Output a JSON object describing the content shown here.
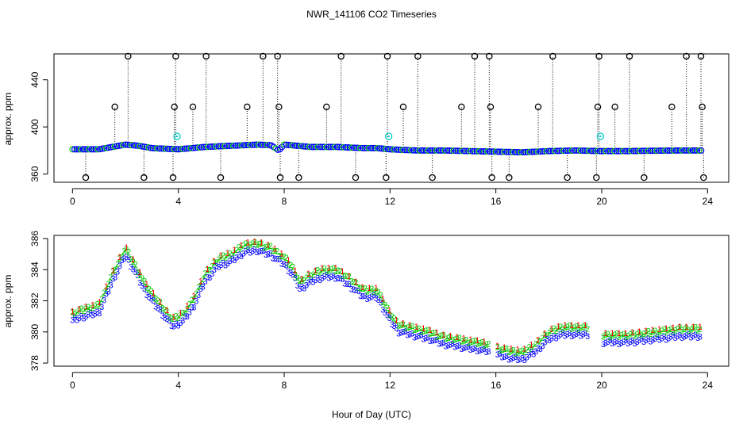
{
  "chart_data": [
    {
      "type": "scatter",
      "title": "NWR_141106  CO2 Timeseries",
      "ylabel": "approx. ppm",
      "xlim": [
        -0.7,
        24.8
      ],
      "ylim": [
        353,
        462
      ],
      "x_ticks": [
        0,
        4,
        8,
        12,
        16,
        20,
        24
      ],
      "y_ticks": [
        360,
        400,
        440
      ],
      "grid": false,
      "legend": "none",
      "colors": {
        "main": "#0000ff",
        "alt": "#00cc00",
        "outlier": "#000000",
        "flag": "#00cccc",
        "drop": "#000000"
      },
      "baseline": [
        [
          0,
          381
        ],
        [
          0.5,
          381
        ],
        [
          1,
          381
        ],
        [
          1.5,
          383
        ],
        [
          2,
          385
        ],
        [
          2.5,
          384
        ],
        [
          3,
          382
        ],
        [
          3.5,
          381.5
        ],
        [
          4,
          381
        ],
        [
          4.5,
          382
        ],
        [
          5,
          383
        ],
        [
          5.5,
          383.5
        ],
        [
          6,
          384
        ],
        [
          6.5,
          384.5
        ],
        [
          7,
          385
        ],
        [
          7.5,
          384.5
        ],
        [
          7.8,
          380
        ],
        [
          8,
          385
        ],
        [
          8.5,
          384
        ],
        [
          9,
          383
        ],
        [
          9.5,
          383
        ],
        [
          10,
          383
        ],
        [
          10.5,
          382.5
        ],
        [
          11,
          382
        ],
        [
          11.5,
          382
        ],
        [
          12,
          381
        ],
        [
          13,
          380
        ],
        [
          14,
          380
        ],
        [
          15,
          379.5
        ],
        [
          16,
          379
        ],
        [
          17,
          378.5
        ],
        [
          18,
          379.5
        ],
        [
          19,
          380
        ],
        [
          20,
          379.5
        ],
        [
          21,
          379.5
        ],
        [
          22,
          379.8
        ],
        [
          23,
          380
        ],
        [
          23.8,
          380
        ]
      ],
      "outliers": [
        {
          "x": 0.5,
          "y": 357
        },
        {
          "x": 1.6,
          "y": 417
        },
        {
          "x": 2.1,
          "y": 460
        },
        {
          "x": 2.7,
          "y": 357
        },
        {
          "x": 3.8,
          "y": 357
        },
        {
          "x": 3.85,
          "y": 417
        },
        {
          "x": 3.9,
          "y": 460
        },
        {
          "x": 4.55,
          "y": 417
        },
        {
          "x": 5.05,
          "y": 460
        },
        {
          "x": 5.6,
          "y": 357
        },
        {
          "x": 6.6,
          "y": 417
        },
        {
          "x": 7.2,
          "y": 460
        },
        {
          "x": 7.75,
          "y": 460
        },
        {
          "x": 7.8,
          "y": 417
        },
        {
          "x": 7.85,
          "y": 357
        },
        {
          "x": 8.55,
          "y": 357
        },
        {
          "x": 9.6,
          "y": 417
        },
        {
          "x": 10.15,
          "y": 460
        },
        {
          "x": 10.7,
          "y": 357
        },
        {
          "x": 11.85,
          "y": 357
        },
        {
          "x": 11.9,
          "y": 460
        },
        {
          "x": 12.5,
          "y": 417
        },
        {
          "x": 13.05,
          "y": 460
        },
        {
          "x": 13.6,
          "y": 357
        },
        {
          "x": 14.7,
          "y": 417
        },
        {
          "x": 15.2,
          "y": 460
        },
        {
          "x": 15.75,
          "y": 460
        },
        {
          "x": 15.8,
          "y": 417
        },
        {
          "x": 15.85,
          "y": 357
        },
        {
          "x": 16.5,
          "y": 357
        },
        {
          "x": 17.6,
          "y": 417
        },
        {
          "x": 18.15,
          "y": 460
        },
        {
          "x": 18.7,
          "y": 357
        },
        {
          "x": 19.8,
          "y": 357
        },
        {
          "x": 19.85,
          "y": 417
        },
        {
          "x": 19.9,
          "y": 460
        },
        {
          "x": 20.5,
          "y": 417
        },
        {
          "x": 21.05,
          "y": 460
        },
        {
          "x": 21.6,
          "y": 357
        },
        {
          "x": 22.65,
          "y": 417
        },
        {
          "x": 23.2,
          "y": 460
        },
        {
          "x": 23.75,
          "y": 460
        },
        {
          "x": 23.8,
          "y": 417
        },
        {
          "x": 23.85,
          "y": 357
        }
      ],
      "flags": [
        {
          "x": 3.95,
          "y": 392
        },
        {
          "x": 11.95,
          "y": 392
        },
        {
          "x": 19.95,
          "y": 392
        }
      ]
    },
    {
      "type": "scatter",
      "xlabel": "Hour of Day (UTC)",
      "ylabel": "approx. ppm",
      "xlim": [
        -0.7,
        24.8
      ],
      "ylim": [
        377.8,
        386.2
      ],
      "x_ticks": [
        0,
        4,
        8,
        12,
        16,
        20,
        24
      ],
      "y_ticks": [
        378,
        380,
        382,
        384,
        386
      ],
      "grid": false,
      "legend": "none",
      "marker_labels": [
        "1",
        "2",
        "3"
      ],
      "colors": {
        "1": "#ff0000",
        "2": "#00cc00",
        "3": "#0000ff",
        "line": "#00aa00"
      },
      "gaps": [
        [
          15.8,
          16.0
        ],
        [
          19.5,
          20.0
        ]
      ],
      "curve": [
        [
          0,
          381
        ],
        [
          0.5,
          381.3
        ],
        [
          1,
          381.5
        ],
        [
          1.5,
          383.5
        ],
        [
          2,
          385.2
        ],
        [
          2.4,
          384
        ],
        [
          2.7,
          383
        ],
        [
          3,
          382.3
        ],
        [
          3.5,
          381.2
        ],
        [
          3.8,
          380.6
        ],
        [
          4.2,
          381
        ],
        [
          4.6,
          382
        ],
        [
          5,
          383.5
        ],
        [
          5.5,
          384.5
        ],
        [
          6,
          384.8
        ],
        [
          6.5,
          385.4
        ],
        [
          7,
          385.5
        ],
        [
          7.5,
          385.2
        ],
        [
          8,
          384.6
        ],
        [
          8.3,
          384
        ],
        [
          8.6,
          383
        ],
        [
          9,
          383.5
        ],
        [
          9.5,
          383.8
        ],
        [
          10,
          383.8
        ],
        [
          10.5,
          383.2
        ],
        [
          11,
          382.5
        ],
        [
          11.5,
          382.5
        ],
        [
          12,
          381
        ],
        [
          12.3,
          380.3
        ],
        [
          13,
          380
        ],
        [
          13.5,
          379.8
        ],
        [
          14,
          379.5
        ],
        [
          15,
          379.2
        ],
        [
          15.8,
          379
        ],
        [
          16,
          378.8
        ],
        [
          16.5,
          378.6
        ],
        [
          17,
          378.5
        ],
        [
          17.5,
          379
        ],
        [
          18,
          379.8
        ],
        [
          18.5,
          380.1
        ],
        [
          19,
          380.1
        ],
        [
          19.5,
          380.1
        ],
        [
          20,
          379.6
        ],
        [
          21,
          379.6
        ],
        [
          22,
          379.8
        ],
        [
          23,
          380
        ],
        [
          23.8,
          380
        ]
      ]
    }
  ]
}
